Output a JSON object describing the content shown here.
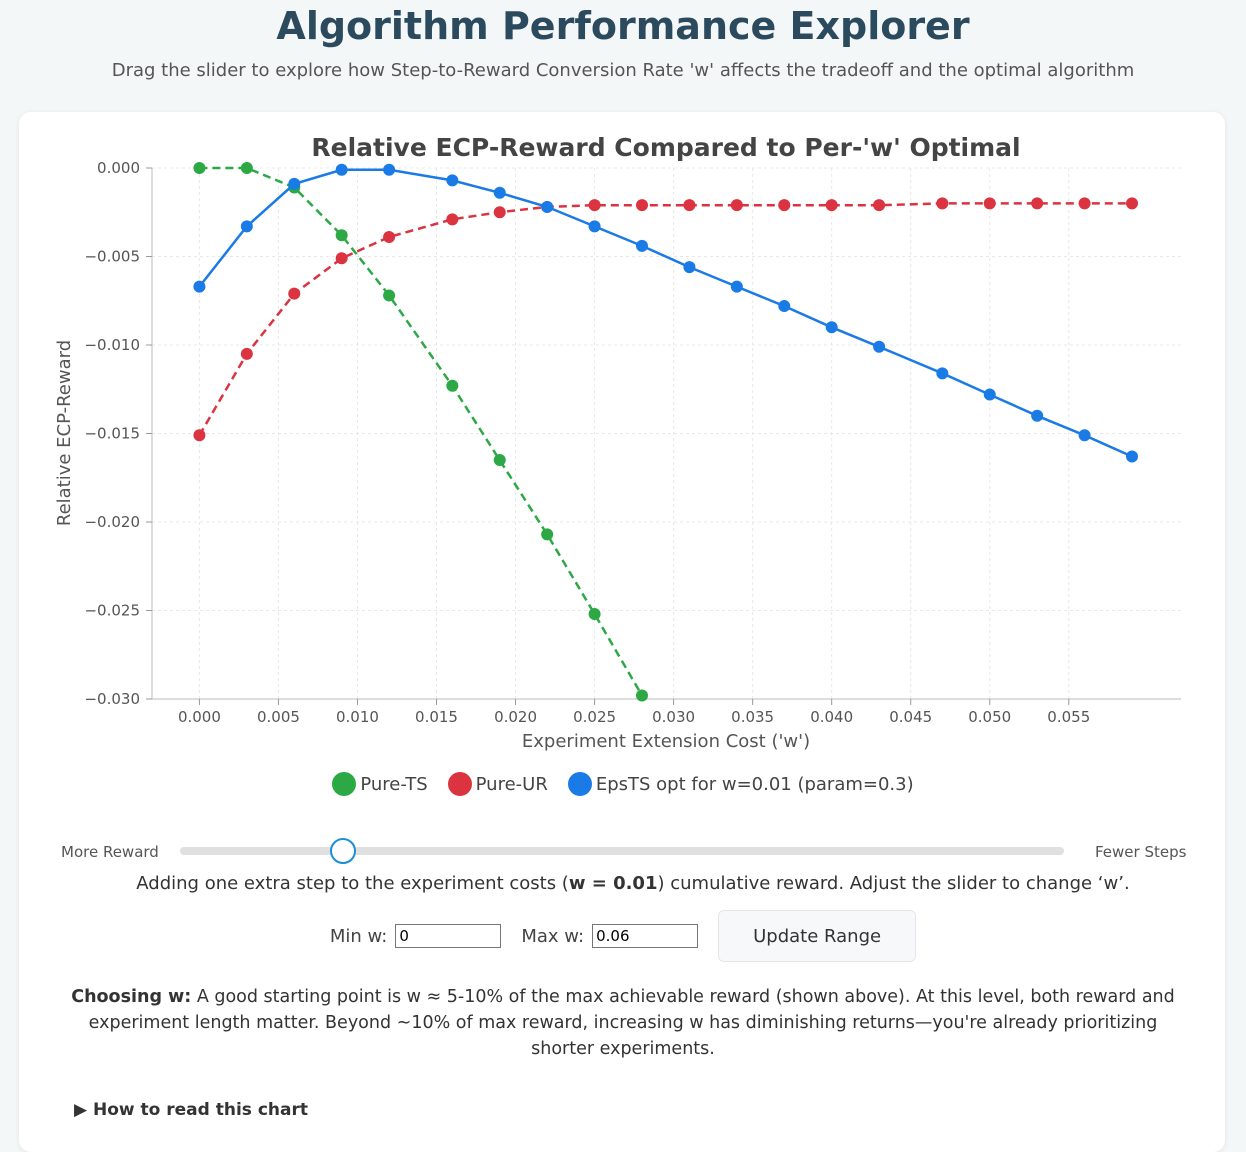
{
  "page": {
    "title": "Algorithm Performance Explorer",
    "subtitle": "Drag the slider to explore how Step-to-Reward Conversion Rate 'w' affects the tradeoff and the optimal algorithm"
  },
  "slider": {
    "left_label": "More Reward",
    "right_label": "Fewer Steps",
    "value": 0.01,
    "min": 0,
    "max": 0.06
  },
  "explanation": {
    "prefix": "Adding one extra step to the experiment costs (",
    "w_text": "w = 0.01",
    "suffix": ") cumulative reward. Adjust the slider to change ‘w’."
  },
  "range": {
    "min_label": "Min w:",
    "min_value": "0",
    "max_label": "Max w:",
    "max_value": "0.06",
    "button_label": "Update Range"
  },
  "note": {
    "bold": "Choosing w:",
    "text": " A good starting point is w ≈ 5-10% of the max achievable reward (shown above). At this level, both reward and experiment length matter. Beyond ~10% of max reward, increasing w has diminishing returns—you're already prioritizing shorter experiments."
  },
  "details": {
    "summary": "▶ How to read this chart"
  },
  "chart_data": {
    "type": "line",
    "title": "Relative ECP-Reward Compared to Per-'w' Optimal",
    "xlabel": "Experiment Extension Cost ('w')",
    "ylabel": "Relative ECP-Reward",
    "xlim": [
      -0.003,
      0.0621
    ],
    "ylim": [
      -0.03,
      0.0
    ],
    "xticks": [
      0.0,
      0.005,
      0.01,
      0.015,
      0.02,
      0.025,
      0.03,
      0.035,
      0.04,
      0.045,
      0.05,
      0.055
    ],
    "xtick_labels": [
      "0.000",
      "0.005",
      "0.010",
      "0.015",
      "0.020",
      "0.025",
      "0.030",
      "0.035",
      "0.040",
      "0.045",
      "0.050",
      "0.055"
    ],
    "yticks": [
      0.0,
      -0.005,
      -0.01,
      -0.015,
      -0.02,
      -0.025,
      -0.03
    ],
    "ytick_labels": [
      "0.000",
      "−0.005",
      "−0.010",
      "−0.015",
      "−0.020",
      "−0.025",
      "−0.030"
    ],
    "grid": true,
    "series": [
      {
        "name": "Pure-TS",
        "color": "#2ca844",
        "dashed": true,
        "x": [
          0.0,
          0.003,
          0.006,
          0.009,
          0.012,
          0.016,
          0.019,
          0.022,
          0.025,
          0.028
        ],
        "values": [
          0.0,
          0.0,
          -0.0011,
          -0.0038,
          -0.0072,
          -0.0123,
          -0.0165,
          -0.0207,
          -0.0252,
          -0.0298
        ]
      },
      {
        "name": "Pure-UR",
        "color": "#db3340",
        "dashed": true,
        "x": [
          0.0,
          0.003,
          0.006,
          0.009,
          0.012,
          0.016,
          0.019,
          0.022,
          0.025,
          0.028,
          0.031,
          0.034,
          0.037,
          0.04,
          0.043,
          0.047,
          0.05,
          0.053,
          0.056,
          0.059
        ],
        "values": [
          -0.0151,
          -0.0105,
          -0.0071,
          -0.0051,
          -0.0039,
          -0.0029,
          -0.0025,
          -0.0022,
          -0.0021,
          -0.0021,
          -0.0021,
          -0.0021,
          -0.0021,
          -0.0021,
          -0.0021,
          -0.002,
          -0.002,
          -0.002,
          -0.002,
          -0.002
        ]
      },
      {
        "name": "EpsTS opt for w=0.01 (param=0.3)",
        "color": "#1a7ae6",
        "dashed": false,
        "x": [
          0.0,
          0.003,
          0.006,
          0.009,
          0.012,
          0.016,
          0.019,
          0.022,
          0.025,
          0.028,
          0.031,
          0.034,
          0.037,
          0.04,
          0.043,
          0.047,
          0.05,
          0.053,
          0.056,
          0.059
        ],
        "values": [
          -0.0067,
          -0.0033,
          -0.0009,
          -0.0001,
          -0.0001,
          -0.0007,
          -0.0014,
          -0.0022,
          -0.0033,
          -0.0044,
          -0.0056,
          -0.0067,
          -0.0078,
          -0.009,
          -0.0101,
          -0.0116,
          -0.0128,
          -0.014,
          -0.0151,
          -0.0163
        ]
      }
    ]
  }
}
